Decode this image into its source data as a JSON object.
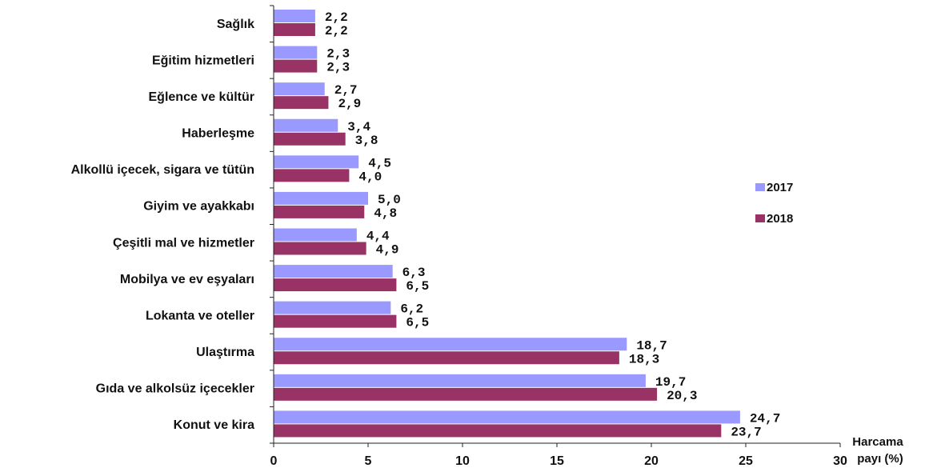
{
  "chart_data": {
    "type": "bar",
    "orientation": "horizontal",
    "categories": [
      "Sağlık",
      "Eğitim hizmetleri",
      "Eğlence ve kültür",
      "Haberleşme",
      "Alkollü içecek, sigara ve tütün",
      "Giyim ve ayakkabı",
      "Çeşitli mal ve hizmetler",
      "Mobilya ve ev eşyaları",
      "Lokanta ve oteller",
      "Ulaştırma",
      "Gıda ve alkolsüz içecekler",
      "Konut ve kira"
    ],
    "series": [
      {
        "name": "2017",
        "color": "#9999ff",
        "values": [
          2.2,
          2.3,
          2.7,
          3.4,
          4.5,
          5.0,
          4.4,
          6.3,
          6.2,
          18.7,
          19.7,
          24.7
        ],
        "labels": [
          "2,2",
          "2,3",
          "2,7",
          "3,4",
          "4,5",
          "5,0",
          "4,4",
          "6,3",
          "6,2",
          "18,7",
          "19,7",
          "24,7"
        ]
      },
      {
        "name": "2018",
        "color": "#993366",
        "values": [
          2.2,
          2.3,
          2.9,
          3.8,
          4.0,
          4.8,
          4.9,
          6.5,
          6.5,
          18.3,
          20.3,
          23.7
        ],
        "labels": [
          "2,2",
          "2,3",
          "2,9",
          "3,8",
          "4,0",
          "4,8",
          "4,9",
          "6,5",
          "6,5",
          "18,3",
          "20,3",
          "23,7"
        ]
      }
    ],
    "x_ticks": [
      0,
      5,
      10,
      15,
      20,
      25,
      30
    ],
    "xlim": [
      0,
      30
    ],
    "xlabel_line1": "Harcama",
    "xlabel_line2": "payı  (%)",
    "title": "",
    "grid": false,
    "legend_position": "right"
  }
}
